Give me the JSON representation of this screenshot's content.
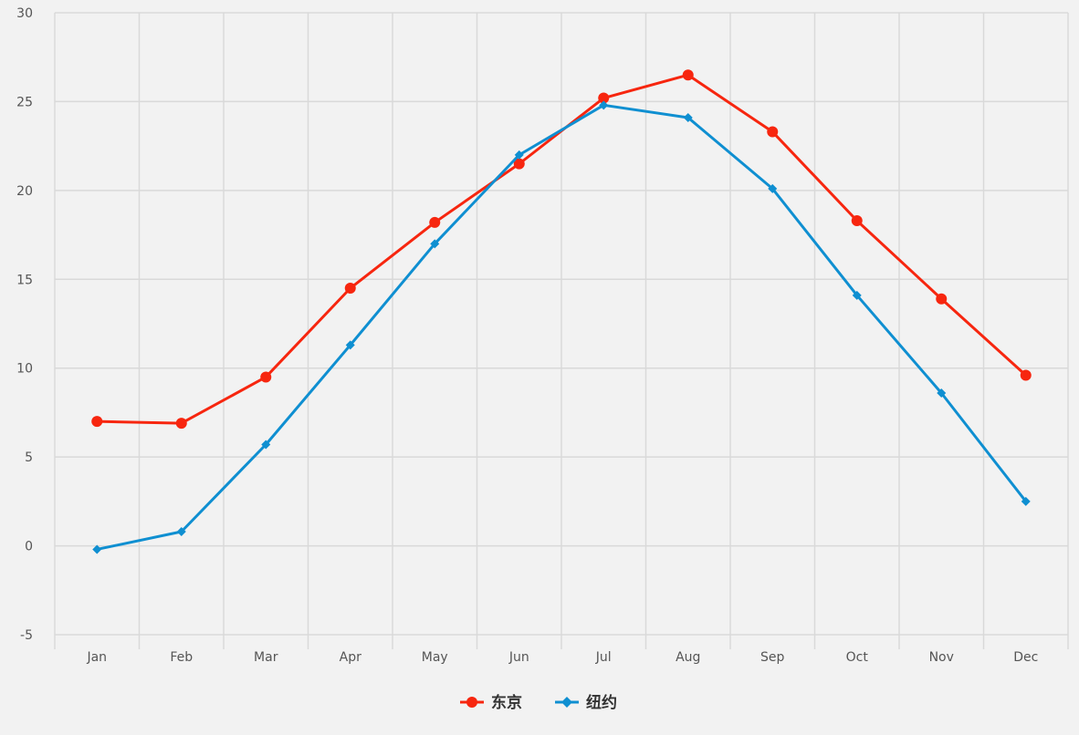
{
  "chart_data": {
    "type": "line",
    "title": "",
    "xlabel": "",
    "ylabel": "",
    "categories": [
      "Jan",
      "Feb",
      "Mar",
      "Apr",
      "May",
      "Jun",
      "Jul",
      "Aug",
      "Sep",
      "Oct",
      "Nov",
      "Dec"
    ],
    "ylim": [
      -5,
      30
    ],
    "yticks": [
      -5,
      0,
      5,
      10,
      15,
      20,
      25,
      30
    ],
    "grid": true,
    "legend_position": "bottom-center",
    "series": [
      {
        "name": "东京",
        "color": "#f7260f",
        "marker": "circle",
        "values": [
          7.0,
          6.9,
          9.5,
          14.5,
          18.2,
          21.5,
          25.2,
          26.5,
          23.3,
          18.3,
          13.9,
          9.6
        ]
      },
      {
        "name": "纽约",
        "color": "#0f8fd1",
        "marker": "diamond",
        "values": [
          -0.2,
          0.8,
          5.7,
          11.3,
          17.0,
          22.0,
          24.8,
          24.1,
          20.1,
          14.1,
          8.6,
          2.5
        ]
      }
    ]
  },
  "colors": {
    "background": "#f2f2f2",
    "grid": "#d9d9d9"
  }
}
